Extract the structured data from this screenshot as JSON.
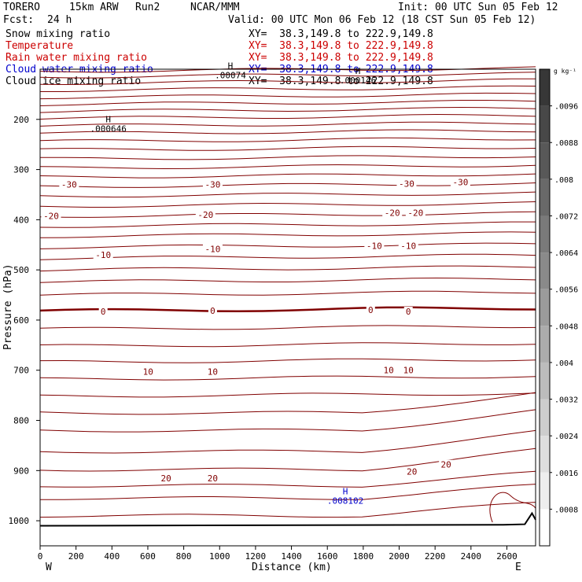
{
  "header": {
    "model": "TORERO",
    "resolution": "15km ARW",
    "run": "Run2",
    "org": "NCAR/MMM",
    "init": "Init: 00 UTC Sun 05 Feb 12",
    "fcst_label": "Fcst:",
    "fcst_value": "24 h",
    "valid": "Valid: 00 UTC Mon 06 Feb 12 (18 CST Sun 05 Feb 12)"
  },
  "fields": [
    {
      "name": "Snow mixing ratio",
      "xy": "XY=  38.3,149.8 to 222.9,149.8",
      "color": "#000000"
    },
    {
      "name": "Temperature",
      "xy": "XY=  38.3,149.8 to 222.9,149.8",
      "color": "#cc0000"
    },
    {
      "name": "Rain water mixing ratio",
      "xy": "XY=  38.3,149.8 to 222.9,149.8",
      "color": "#cc0000"
    },
    {
      "name": "Cloud water mixing ratio",
      "xy": "XY=  38.3,149.8 to 222.9,149.8",
      "color": "#0000cc"
    },
    {
      "name": "Cloud ice mixing ratio",
      "xy": "XY=  38.3,149.8 to 222.9,149.8",
      "color": "#000000"
    }
  ],
  "colors": {
    "temperature": "#800000",
    "cloud_water": "#0000cc",
    "text": "#000000"
  },
  "colorbar": {
    "unit": "g kg⁻¹",
    "labels": [
      ".0096",
      ".0088",
      ".008",
      ".0072",
      ".0064",
      ".0056",
      ".0048",
      ".004",
      ".0032",
      ".0024",
      ".0016",
      ".0008"
    ]
  },
  "chart_data": {
    "type": "line",
    "xlabel": "Distance (km)",
    "ylabel": "Pressure (hPa)",
    "xlim": [
      0,
      2760
    ],
    "ylim": [
      1050,
      100
    ],
    "x_ticks": [
      0,
      200,
      400,
      600,
      800,
      1000,
      1200,
      1400,
      1600,
      1800,
      2000,
      2200,
      2400,
      2600
    ],
    "y_ticks": [
      200,
      300,
      400,
      500,
      600,
      700,
      800,
      900,
      1000
    ],
    "left_end_label": "W",
    "right_end_label": "E",
    "contour_labels": [
      {
        "text": "-30",
        "x": 100,
        "p": 330
      },
      {
        "text": "-30",
        "x": 900,
        "p": 330
      },
      {
        "text": "-30",
        "x": 1980,
        "p": 328
      },
      {
        "text": "-30",
        "x": 2280,
        "p": 325
      },
      {
        "text": "-20",
        "x": 0,
        "p": 392
      },
      {
        "text": "-20",
        "x": 860,
        "p": 390
      },
      {
        "text": "-20",
        "x": 1900,
        "p": 386
      },
      {
        "text": "-20",
        "x": 2030,
        "p": 386
      },
      {
        "text": "-10",
        "x": 290,
        "p": 470
      },
      {
        "text": "-10",
        "x": 900,
        "p": 458
      },
      {
        "text": "-10",
        "x": 1800,
        "p": 452
      },
      {
        "text": "-10",
        "x": 1990,
        "p": 452
      },
      {
        "text": "0",
        "x": 290,
        "p": 583
      },
      {
        "text": "0",
        "x": 900,
        "p": 581
      },
      {
        "text": "0",
        "x": 1780,
        "p": 580
      },
      {
        "text": "0",
        "x": 1990,
        "p": 583
      },
      {
        "text": "10",
        "x": 540,
        "p": 703
      },
      {
        "text": "10",
        "x": 900,
        "p": 703
      },
      {
        "text": "10",
        "x": 1880,
        "p": 700
      },
      {
        "text": "10",
        "x": 1990,
        "p": 700
      },
      {
        "text": "20",
        "x": 640,
        "p": 915
      },
      {
        "text": "20",
        "x": 900,
        "p": 915
      },
      {
        "text": "20",
        "x": 2010,
        "p": 902
      },
      {
        "text": "20",
        "x": 2200,
        "p": 888
      }
    ],
    "extrema": [
      {
        "mark": "H",
        "value": ".000646",
        "x": 380,
        "p": 218,
        "color": "#000000"
      },
      {
        "mark": "H",
        "value": ".00074",
        "x": 1060,
        "p": 112,
        "color": "#000000"
      },
      {
        "mark": "H",
        "value": ".000146",
        "x": 1770,
        "p": 122,
        "color": "#000000"
      },
      {
        "mark": "H",
        "value": ".008102",
        "x": 1700,
        "p": 960,
        "color": "#0000cc"
      }
    ]
  }
}
